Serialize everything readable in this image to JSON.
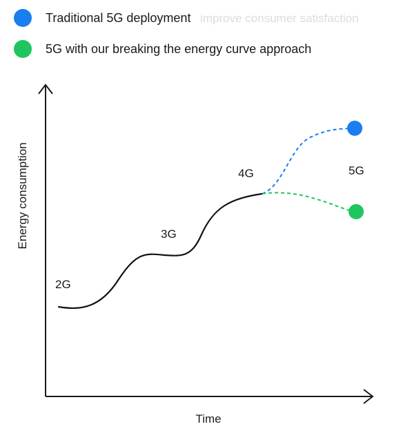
{
  "legend": {
    "items": [
      {
        "label": "Traditional 5G deployment",
        "color": "#1a7ef0"
      },
      {
        "label": "5G with our breaking the energy curve approach",
        "color": "#20c55f"
      }
    ],
    "overlay_text": "improve consumer satisfaction"
  },
  "chart_data": {
    "type": "line",
    "xlabel": "Time",
    "ylabel": "Energy consumption",
    "axis_tick_values": false,
    "grid": false,
    "legend_position": "top-left",
    "generations": [
      {
        "label": "2G"
      },
      {
        "label": "3G"
      },
      {
        "label": "4G"
      },
      {
        "label": "5G"
      }
    ],
    "series": [
      {
        "name": "Traditional 5G deployment",
        "color": "#1a7ef0",
        "style": "dashed",
        "end_marker": true
      },
      {
        "name": "5G with our breaking the energy curve approach",
        "color": "#20c55f",
        "style": "dashed",
        "end_marker": true
      }
    ],
    "history_line": {
      "color": "#111111",
      "style": "solid"
    },
    "colors": {
      "axis": "#1a1a1a",
      "history": "#111111",
      "traditional": "#1a7ef0",
      "approach": "#20c55f"
    }
  }
}
